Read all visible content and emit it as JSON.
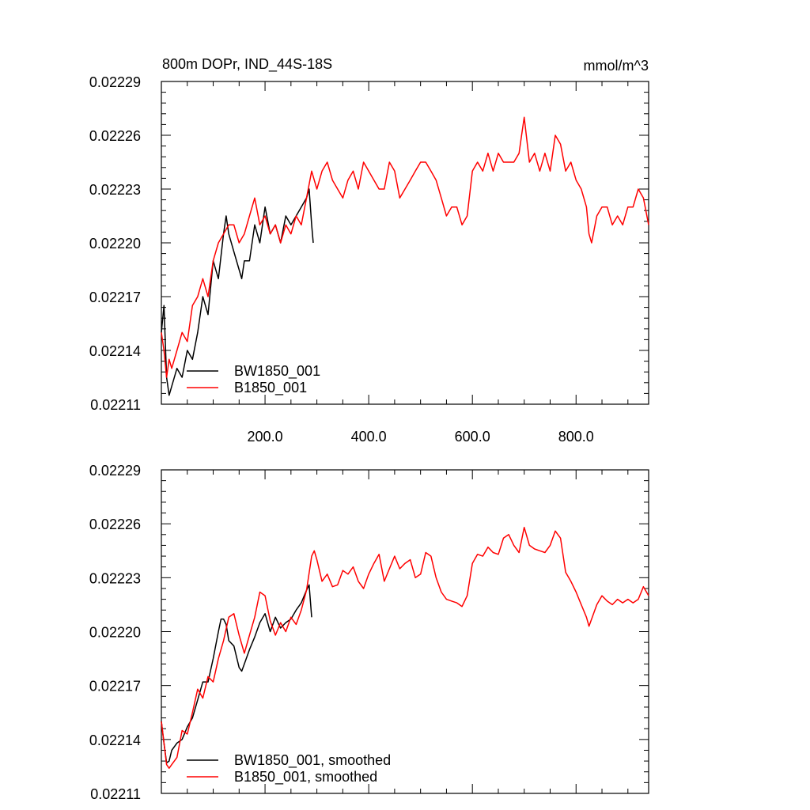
{
  "title_left": "800m DOPr, IND_44S-18S",
  "title_right": "mmol/m^3",
  "colors": {
    "series_a": "#000000",
    "series_b": "#ff0000",
    "frame": "#000000"
  },
  "chart_data": [
    {
      "type": "line",
      "panel": "top",
      "xlim": [
        0,
        940
      ],
      "ylim": [
        0.02211,
        0.02229
      ],
      "y_ticks": [
        "0.02211",
        "0.02214",
        "0.02217",
        "0.02220",
        "0.02223",
        "0.02226",
        "0.02229"
      ],
      "x_ticks": [
        "200.0",
        "400.0",
        "600.0",
        "800.0"
      ],
      "x_tick_values": [
        200,
        400,
        600,
        800
      ],
      "show_x_tick_labels": true,
      "legend": {
        "placement": "bottom-left",
        "entries": [
          "BW1850_001",
          "B1850_001"
        ]
      },
      "series": [
        {
          "name": "BW1850_001",
          "color": "#000000",
          "x": [
            0,
            5,
            10,
            15,
            20,
            30,
            40,
            50,
            60,
            70,
            80,
            90,
            100,
            110,
            120,
            125,
            130,
            140,
            150,
            155,
            160,
            170,
            180,
            190,
            200,
            210,
            220,
            230,
            240,
            250,
            260,
            270,
            280,
            285,
            290,
            293
          ],
          "y": [
            0.02215,
            0.022165,
            0.022125,
            0.022115,
            0.02212,
            0.02213,
            0.022125,
            0.02214,
            0.022135,
            0.02215,
            0.02217,
            0.02216,
            0.02219,
            0.02218,
            0.022205,
            0.022215,
            0.022205,
            0.022195,
            0.022185,
            0.02218,
            0.02219,
            0.02219,
            0.02221,
            0.0222,
            0.02222,
            0.022205,
            0.02221,
            0.0222,
            0.022215,
            0.02221,
            0.022215,
            0.02222,
            0.022225,
            0.02223,
            0.02221,
            0.0222
          ]
        },
        {
          "name": "B1850_001",
          "color": "#ff0000",
          "x": [
            0,
            5,
            10,
            15,
            20,
            30,
            40,
            50,
            60,
            70,
            80,
            90,
            100,
            110,
            120,
            130,
            140,
            150,
            160,
            170,
            180,
            190,
            200,
            210,
            220,
            230,
            240,
            250,
            260,
            270,
            280,
            290,
            295,
            300,
            310,
            320,
            330,
            340,
            350,
            360,
            370,
            380,
            390,
            400,
            410,
            420,
            430,
            440,
            450,
            460,
            470,
            480,
            490,
            500,
            510,
            520,
            530,
            540,
            550,
            560,
            570,
            580,
            590,
            600,
            610,
            620,
            630,
            640,
            650,
            660,
            670,
            680,
            690,
            695,
            700,
            710,
            720,
            730,
            740,
            750,
            760,
            770,
            780,
            790,
            800,
            810,
            820,
            825,
            830,
            840,
            850,
            860,
            870,
            880,
            890,
            900,
            910,
            920,
            930,
            940
          ],
          "y": [
            0.02215,
            0.02214,
            0.022125,
            0.022135,
            0.02213,
            0.02214,
            0.02215,
            0.022145,
            0.022165,
            0.02217,
            0.02218,
            0.02217,
            0.02219,
            0.0222,
            0.022205,
            0.02221,
            0.02221,
            0.0222,
            0.022205,
            0.022215,
            0.022225,
            0.02221,
            0.022215,
            0.022205,
            0.02221,
            0.0222,
            0.02221,
            0.022205,
            0.022215,
            0.02221,
            0.022225,
            0.02224,
            0.022235,
            0.02223,
            0.02224,
            0.022245,
            0.022235,
            0.02223,
            0.022225,
            0.022235,
            0.02224,
            0.02223,
            0.022245,
            0.02224,
            0.022235,
            0.02223,
            0.02223,
            0.022245,
            0.02224,
            0.022225,
            0.02223,
            0.022235,
            0.02224,
            0.022245,
            0.022245,
            0.02224,
            0.022235,
            0.022225,
            0.022215,
            0.02222,
            0.02222,
            0.02221,
            0.022215,
            0.02224,
            0.022245,
            0.02224,
            0.02225,
            0.02224,
            0.02225,
            0.022245,
            0.022245,
            0.022245,
            0.02225,
            0.02226,
            0.02227,
            0.022245,
            0.02225,
            0.02224,
            0.02225,
            0.02224,
            0.02226,
            0.022255,
            0.02224,
            0.022245,
            0.022235,
            0.02223,
            0.02222,
            0.022205,
            0.0222,
            0.022215,
            0.02222,
            0.02222,
            0.02221,
            0.022215,
            0.02221,
            0.02222,
            0.02222,
            0.02223,
            0.022225,
            0.02221
          ]
        }
      ]
    },
    {
      "type": "line",
      "panel": "bottom",
      "xlim": [
        0,
        940
      ],
      "ylim": [
        0.02211,
        0.02229
      ],
      "y_ticks": [
        "0.02211",
        "0.02214",
        "0.02217",
        "0.02220",
        "0.02223",
        "0.02226",
        "0.02229"
      ],
      "x_ticks": [],
      "x_tick_values": [
        200,
        400,
        600,
        800
      ],
      "show_x_tick_labels": false,
      "legend": {
        "placement": "bottom-left",
        "entries": [
          "BW1850_001, smoothed",
          "B1850_001, smoothed"
        ]
      },
      "series": [
        {
          "name": "BW1850_001, smoothed",
          "color": "#000000",
          "x": [
            0,
            5,
            10,
            15,
            20,
            30,
            40,
            50,
            60,
            70,
            80,
            90,
            100,
            110,
            115,
            120,
            125,
            130,
            140,
            150,
            155,
            160,
            170,
            180,
            190,
            200,
            210,
            220,
            230,
            240,
            250,
            260,
            270,
            280,
            285,
            290
          ],
          "y": [
            0.02215,
            0.022138,
            0.022127,
            0.022128,
            0.022134,
            0.022138,
            0.02214,
            0.022147,
            0.022152,
            0.022162,
            0.022172,
            0.022172,
            0.022185,
            0.0222,
            0.022207,
            0.022207,
            0.022204,
            0.022195,
            0.022192,
            0.02218,
            0.022178,
            0.022182,
            0.02219,
            0.022197,
            0.022205,
            0.02221,
            0.0222,
            0.022208,
            0.022202,
            0.022205,
            0.022207,
            0.022212,
            0.022216,
            0.022223,
            0.022226,
            0.022208
          ]
        },
        {
          "name": "B1850_001, smoothed",
          "color": "#ff0000",
          "x": [
            0,
            5,
            10,
            15,
            20,
            30,
            40,
            50,
            60,
            70,
            80,
            90,
            100,
            110,
            120,
            130,
            140,
            150,
            160,
            170,
            180,
            190,
            200,
            210,
            220,
            230,
            240,
            250,
            260,
            270,
            280,
            290,
            295,
            300,
            310,
            320,
            330,
            340,
            350,
            360,
            370,
            380,
            390,
            400,
            410,
            420,
            430,
            440,
            450,
            460,
            470,
            480,
            490,
            500,
            510,
            520,
            530,
            540,
            550,
            560,
            570,
            580,
            590,
            600,
            610,
            620,
            630,
            640,
            650,
            660,
            670,
            680,
            690,
            700,
            710,
            720,
            730,
            740,
            750,
            760,
            770,
            780,
            790,
            800,
            810,
            820,
            825,
            830,
            840,
            850,
            860,
            870,
            880,
            890,
            900,
            910,
            920,
            930,
            940
          ],
          "y": [
            0.02215,
            0.022138,
            0.022126,
            0.022124,
            0.022126,
            0.02213,
            0.022145,
            0.022143,
            0.022155,
            0.022168,
            0.022163,
            0.022175,
            0.022172,
            0.022185,
            0.022195,
            0.022208,
            0.02221,
            0.022198,
            0.022188,
            0.022198,
            0.022208,
            0.022222,
            0.02222,
            0.022206,
            0.022198,
            0.022205,
            0.0222,
            0.022208,
            0.022204,
            0.022212,
            0.022223,
            0.022242,
            0.022245,
            0.02224,
            0.022228,
            0.022232,
            0.022225,
            0.022226,
            0.022234,
            0.022232,
            0.022236,
            0.022228,
            0.022224,
            0.022232,
            0.022238,
            0.022243,
            0.022228,
            0.022235,
            0.022242,
            0.022235,
            0.022238,
            0.02224,
            0.02223,
            0.022232,
            0.022244,
            0.022242,
            0.02223,
            0.022222,
            0.022218,
            0.022217,
            0.022216,
            0.022214,
            0.02222,
            0.022238,
            0.022243,
            0.022242,
            0.022247,
            0.022244,
            0.022243,
            0.022252,
            0.022254,
            0.022248,
            0.022244,
            0.022258,
            0.022248,
            0.022246,
            0.022245,
            0.022244,
            0.022248,
            0.022256,
            0.022252,
            0.022233,
            0.022228,
            0.022222,
            0.022215,
            0.022208,
            0.022203,
            0.022207,
            0.022215,
            0.02222,
            0.022217,
            0.022215,
            0.022218,
            0.022216,
            0.022218,
            0.022216,
            0.022218,
            0.022225,
            0.02222
          ]
        }
      ]
    }
  ]
}
